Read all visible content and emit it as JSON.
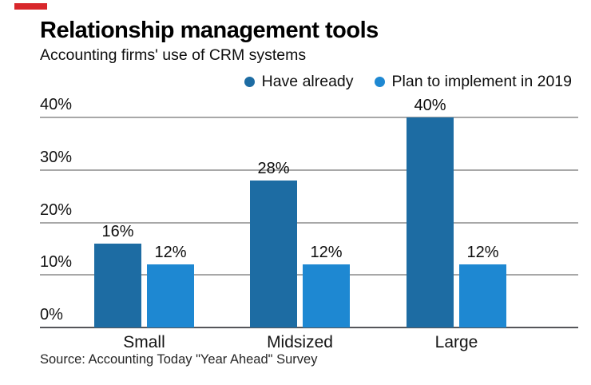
{
  "colors": {
    "accent_red": "#d8272b",
    "dark_blue": "#1d6ca3",
    "light_blue": "#1e88d2",
    "gridline": "#a8a8a8",
    "baseline": "#55565a"
  },
  "chart_data": {
    "type": "bar",
    "title": "Relationship management tools",
    "subtitle": "Accounting firms' use of CRM systems",
    "categories": [
      "Small",
      "Midsized",
      "Large"
    ],
    "series": [
      {
        "name": "Have already",
        "color": "#1d6ca3",
        "values": [
          16,
          28,
          40
        ],
        "value_labels": [
          "16%",
          "28%",
          "40%"
        ]
      },
      {
        "name": "Plan to implement in 2019",
        "color": "#1e88d2",
        "values": [
          12,
          12,
          12
        ],
        "value_labels": [
          "12%",
          "12%",
          "12%"
        ]
      }
    ],
    "ylim": [
      0,
      40
    ],
    "yticks": [
      {
        "value": 0,
        "label": "0%"
      },
      {
        "value": 10,
        "label": "10%"
      },
      {
        "value": 20,
        "label": "20%"
      },
      {
        "value": 30,
        "label": "30%"
      },
      {
        "value": 40,
        "label": "40%"
      }
    ],
    "grid": true,
    "legend_position": "top-right",
    "source": "Source: Accounting Today \"Year Ahead\" Survey"
  }
}
